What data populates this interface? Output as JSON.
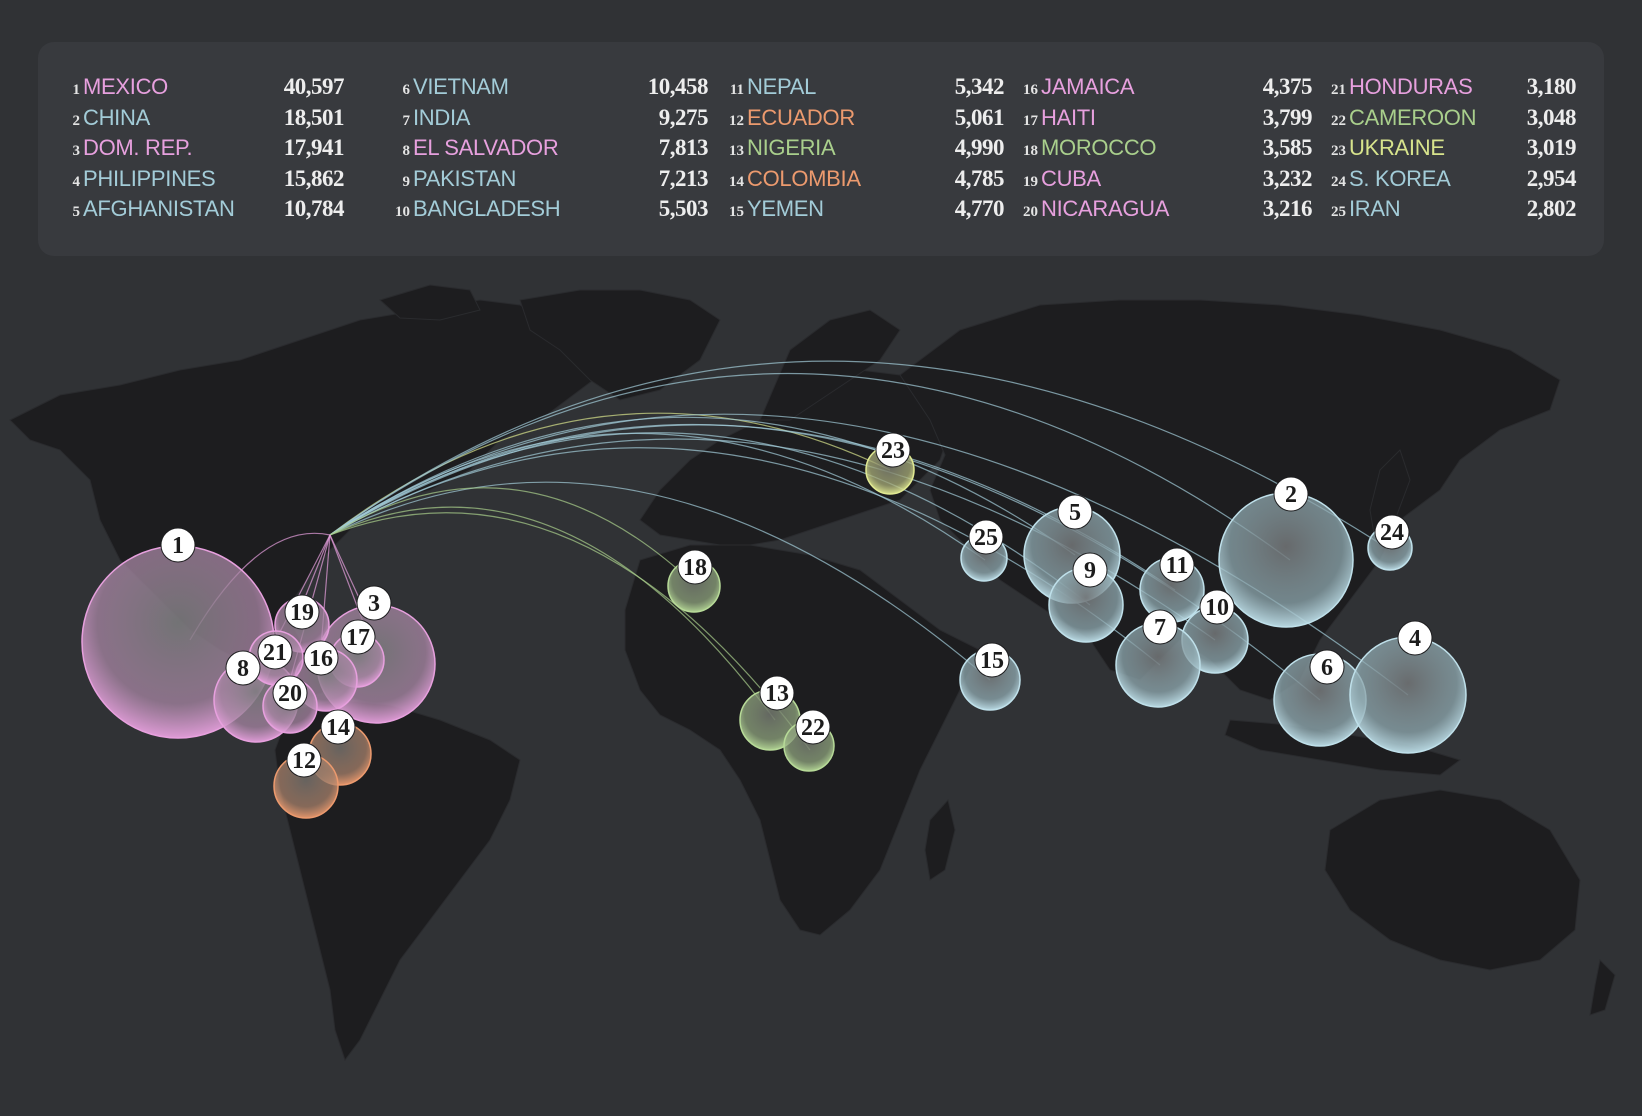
{
  "colors": {
    "background": "#303235",
    "land": "#1d1d1f",
    "panel": "#383a3e",
    "latin_america": "#e7a0de",
    "caribbean_south_america": "#ec9a6e",
    "africa": "#a9cf8c",
    "europe": "#d7e38c",
    "asia": "#a3ccd8"
  },
  "legend": [
    {
      "rank": "1",
      "name": "MEXICO",
      "value": "40,597",
      "color": "#e7a0de"
    },
    {
      "rank": "2",
      "name": "CHINA",
      "value": "18,501",
      "color": "#a3ccd8"
    },
    {
      "rank": "3",
      "name": "DOM. REP.",
      "value": "17,941",
      "color": "#e7a0de"
    },
    {
      "rank": "4",
      "name": "PHILIPPINES",
      "value": "15,862",
      "color": "#a3ccd8"
    },
    {
      "rank": "5",
      "name": "AFGHANISTAN",
      "value": "10,784",
      "color": "#a3ccd8"
    },
    {
      "rank": "6",
      "name": "VIETNAM",
      "value": "10,458",
      "color": "#a3ccd8"
    },
    {
      "rank": "7",
      "name": "INDIA",
      "value": "9,275",
      "color": "#a3ccd8"
    },
    {
      "rank": "8",
      "name": "EL SALVADOR",
      "value": "7,813",
      "color": "#e7a0de"
    },
    {
      "rank": "9",
      "name": "PAKISTAN",
      "value": "7,213",
      "color": "#a3ccd8"
    },
    {
      "rank": "10",
      "name": "BANGLADESH",
      "value": "5,503",
      "color": "#a3ccd8"
    },
    {
      "rank": "11",
      "name": "NEPAL",
      "value": "5,342",
      "color": "#a3ccd8"
    },
    {
      "rank": "12",
      "name": "ECUADOR",
      "value": "5,061",
      "color": "#ec9a6e"
    },
    {
      "rank": "13",
      "name": "NIGERIA",
      "value": "4,990",
      "color": "#a9cf8c"
    },
    {
      "rank": "14",
      "name": "COLOMBIA",
      "value": "4,785",
      "color": "#ec9a6e"
    },
    {
      "rank": "15",
      "name": "YEMEN",
      "value": "4,770",
      "color": "#a3ccd8"
    },
    {
      "rank": "16",
      "name": "JAMAICA",
      "value": "4,375",
      "color": "#e7a0de"
    },
    {
      "rank": "17",
      "name": "HAITI",
      "value": "3,799",
      "color": "#e7a0de"
    },
    {
      "rank": "18",
      "name": "MOROCCO",
      "value": "3,585",
      "color": "#a9cf8c"
    },
    {
      "rank": "19",
      "name": "CUBA",
      "value": "3,232",
      "color": "#e7a0de"
    },
    {
      "rank": "20",
      "name": "NICARAGUA",
      "value": "3,216",
      "color": "#e7a0de"
    },
    {
      "rank": "21",
      "name": "HONDURAS",
      "value": "3,180",
      "color": "#e7a0de"
    },
    {
      "rank": "22",
      "name": "CAMEROON",
      "value": "3,048",
      "color": "#a9cf8c"
    },
    {
      "rank": "23",
      "name": "UKRAINE",
      "value": "3,019",
      "color": "#d7e38c"
    },
    {
      "rank": "24",
      "name": "S. KOREA",
      "value": "2,954",
      "color": "#a3ccd8"
    },
    {
      "rank": "25",
      "name": "IRAN",
      "value": "2,802",
      "color": "#a3ccd8"
    }
  ]
}
